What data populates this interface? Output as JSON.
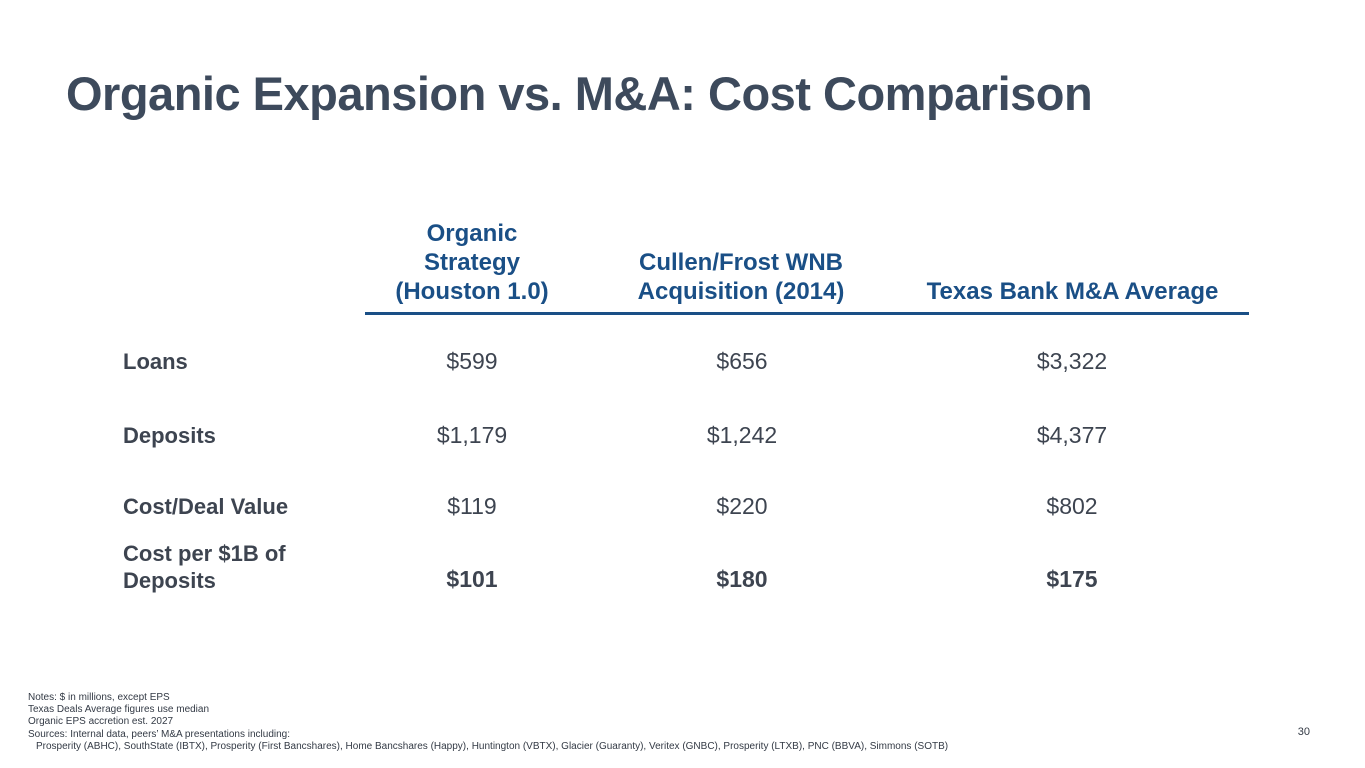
{
  "title": "Organic Expansion vs. M&A: Cost Comparison",
  "table": {
    "columns": [
      "Organic\nStrategy\n(Houston 1.0)",
      "Cullen/Frost WNB\nAcquisition (2014)",
      "Texas Bank M&A Average"
    ],
    "rows": [
      {
        "label": "Loans",
        "values": [
          "$599",
          "$656",
          "$3,322"
        ]
      },
      {
        "label": "Deposits",
        "values": [
          "$1,179",
          "$1,242",
          "$4,377"
        ]
      },
      {
        "label": "Cost/Deal Value",
        "values": [
          "$119",
          "$220",
          "$802"
        ]
      },
      {
        "label": "Cost per $1B of\nDeposits",
        "values": [
          "$101",
          "$180",
          "$175"
        ]
      }
    ]
  },
  "notes": [
    "Notes: $ in millions, except EPS",
    "Texas Deals Average figures use median",
    "Organic EPS accretion est. 2027",
    "Sources: Internal data, peers’ M&A presentations including:",
    "Prosperity (ABHC), SouthState (IBTX), Prosperity (First Bancshares), Home Bancshares (Happy), Huntington (VBTX), Glacier (Guaranty), Veritex (GNBC), Prosperity (LTXB), PNC (BBVA), Simmons (SOTB)"
  ],
  "page_number": "30"
}
